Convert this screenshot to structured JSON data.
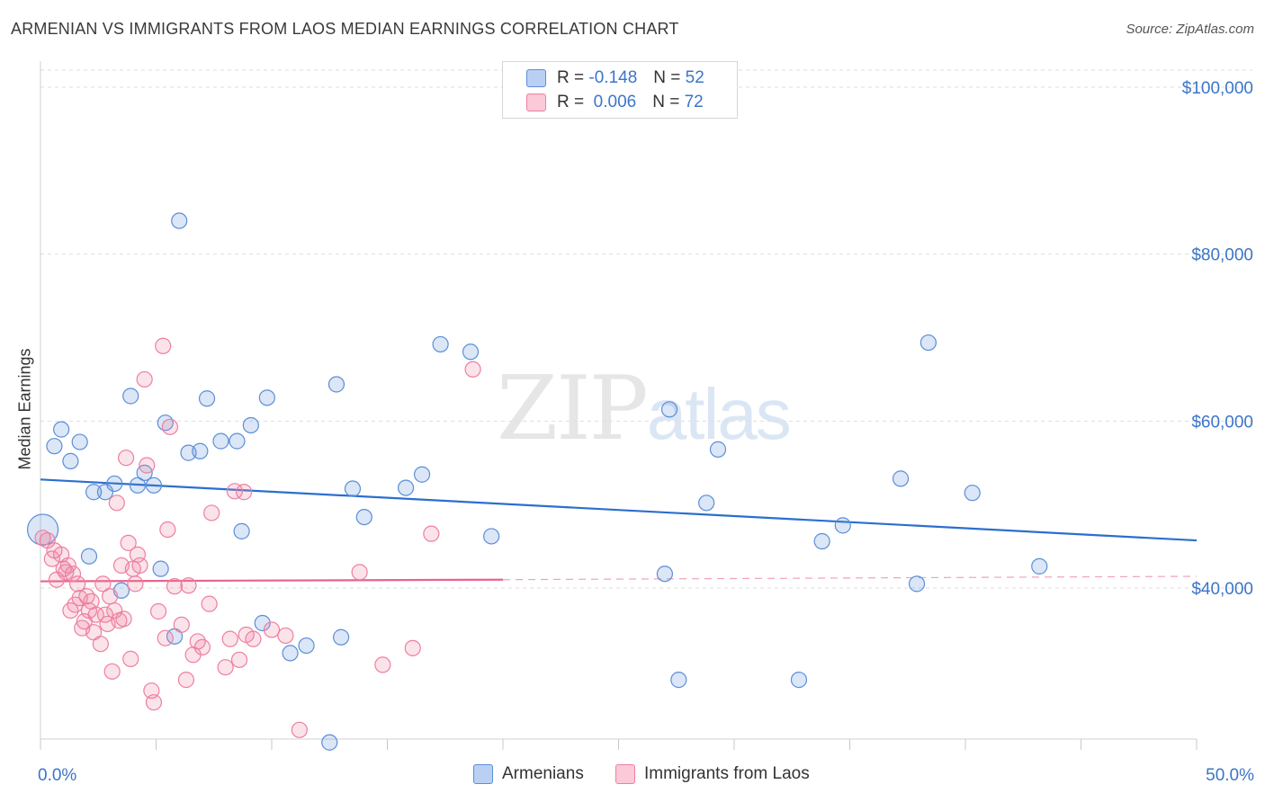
{
  "title": "ARMENIAN VS IMMIGRANTS FROM LAOS MEDIAN EARNINGS CORRELATION CHART",
  "source": "Source: ZipAtlas.com",
  "watermark": {
    "zip": "ZIP",
    "atlas": "atlas"
  },
  "legend_top": {
    "rows": [
      {
        "r_label": "R =",
        "r_value": "-0.148",
        "n_label": "N =",
        "n_value": "52"
      },
      {
        "r_label": "R =",
        "r_value": "0.006",
        "n_label": "N =",
        "n_value": "72"
      }
    ]
  },
  "x_start_label": "0.0%",
  "x_end_label": "50.0%",
  "chart_data": {
    "type": "scatter",
    "title": "ARMENIAN VS IMMIGRANTS FROM LAOS MEDIAN EARNINGS CORRELATION CHART",
    "xlabel": "",
    "ylabel": "Median Earnings",
    "xlim": [
      0,
      50
    ],
    "ylim": [
      19000,
      101000
    ],
    "y_ticks": [
      {
        "value": 40000,
        "label": "$40,000"
      },
      {
        "value": 60000,
        "label": "$60,000"
      },
      {
        "value": 80000,
        "label": "$80,000"
      },
      {
        "value": 100000,
        "label": "$100,000"
      }
    ],
    "colors": {
      "armenians": "#5b8ed8",
      "laos": "#ee7fa0",
      "blue_line": "#2a6fcf",
      "pink_line": "#e8638e"
    },
    "series": [
      {
        "name": "Armenians",
        "color": "#5b8ed8",
        "points": [
          [
            0.1,
            47000
          ],
          [
            0.6,
            57000
          ],
          [
            0.9,
            59000
          ],
          [
            1.3,
            55200
          ],
          [
            1.7,
            57500
          ],
          [
            2.1,
            43800
          ],
          [
            2.3,
            51500
          ],
          [
            2.8,
            51500
          ],
          [
            3.2,
            52500
          ],
          [
            3.5,
            39700
          ],
          [
            3.9,
            63000
          ],
          [
            4.2,
            52300
          ],
          [
            4.5,
            53800
          ],
          [
            4.9,
            52300
          ],
          [
            5.2,
            42300
          ],
          [
            5.4,
            59800
          ],
          [
            6.0,
            84000
          ],
          [
            6.4,
            56200
          ],
          [
            6.9,
            56400
          ],
          [
            7.2,
            62700
          ],
          [
            7.8,
            57600
          ],
          [
            8.5,
            57600
          ],
          [
            8.7,
            46800
          ],
          [
            9.1,
            59500
          ],
          [
            9.6,
            35800
          ],
          [
            9.8,
            62800
          ],
          [
            10.8,
            32200
          ],
          [
            11.5,
            33100
          ],
          [
            12.5,
            21500
          ],
          [
            12.8,
            64400
          ],
          [
            13.0,
            34100
          ],
          [
            13.5,
            51900
          ],
          [
            14.0,
            48500
          ],
          [
            15.8,
            52000
          ],
          [
            16.5,
            53600
          ],
          [
            17.3,
            69200
          ],
          [
            18.6,
            68300
          ],
          [
            19.5,
            46200
          ],
          [
            27.0,
            41700
          ],
          [
            27.2,
            61400
          ],
          [
            27.6,
            29000
          ],
          [
            28.8,
            50200
          ],
          [
            29.3,
            56600
          ],
          [
            32.8,
            29000
          ],
          [
            33.8,
            45600
          ],
          [
            34.7,
            47500
          ],
          [
            37.2,
            53100
          ],
          [
            37.9,
            40500
          ],
          [
            38.4,
            69400
          ],
          [
            40.3,
            51400
          ],
          [
            43.2,
            42600
          ],
          [
            5.8,
            34200
          ]
        ]
      },
      {
        "name": "Immigrants from Laos",
        "color": "#ee7fa0",
        "points": [
          [
            0.1,
            46000
          ],
          [
            0.3,
            45700
          ],
          [
            0.5,
            43500
          ],
          [
            0.6,
            44500
          ],
          [
            0.7,
            41000
          ],
          [
            0.9,
            44000
          ],
          [
            1.0,
            42300
          ],
          [
            1.1,
            41900
          ],
          [
            1.2,
            42700
          ],
          [
            1.3,
            37300
          ],
          [
            1.4,
            41700
          ],
          [
            1.5,
            38000
          ],
          [
            1.6,
            40500
          ],
          [
            1.7,
            38800
          ],
          [
            1.8,
            35200
          ],
          [
            1.9,
            36000
          ],
          [
            2.0,
            39000
          ],
          [
            2.1,
            37300
          ],
          [
            2.2,
            38400
          ],
          [
            2.3,
            34700
          ],
          [
            2.4,
            36800
          ],
          [
            2.6,
            33300
          ],
          [
            2.7,
            40500
          ],
          [
            2.8,
            36800
          ],
          [
            2.9,
            35700
          ],
          [
            3.0,
            39000
          ],
          [
            3.1,
            30000
          ],
          [
            3.2,
            37300
          ],
          [
            3.3,
            50200
          ],
          [
            3.4,
            36100
          ],
          [
            3.5,
            42700
          ],
          [
            3.6,
            36300
          ],
          [
            3.7,
            55600
          ],
          [
            3.8,
            45400
          ],
          [
            4.0,
            42300
          ],
          [
            4.1,
            40500
          ],
          [
            4.2,
            44000
          ],
          [
            4.3,
            42700
          ],
          [
            4.5,
            65000
          ],
          [
            4.6,
            54700
          ],
          [
            4.8,
            27700
          ],
          [
            4.9,
            26300
          ],
          [
            5.1,
            37200
          ],
          [
            5.3,
            69000
          ],
          [
            5.4,
            34000
          ],
          [
            5.5,
            47000
          ],
          [
            5.6,
            59300
          ],
          [
            5.8,
            40200
          ],
          [
            6.1,
            35600
          ],
          [
            6.3,
            29000
          ],
          [
            6.4,
            40300
          ],
          [
            6.8,
            33600
          ],
          [
            7.0,
            32900
          ],
          [
            7.3,
            38100
          ],
          [
            7.4,
            49000
          ],
          [
            8.2,
            33900
          ],
          [
            8.4,
            51600
          ],
          [
            8.6,
            31400
          ],
          [
            8.8,
            51500
          ],
          [
            8.9,
            34400
          ],
          [
            9.2,
            33900
          ],
          [
            10.0,
            35000
          ],
          [
            10.6,
            34300
          ],
          [
            11.2,
            23000
          ],
          [
            13.8,
            41900
          ],
          [
            14.8,
            30800
          ],
          [
            16.1,
            32800
          ],
          [
            16.9,
            46500
          ],
          [
            18.7,
            66200
          ],
          [
            6.6,
            32000
          ],
          [
            8.0,
            30500
          ],
          [
            3.9,
            31500
          ]
        ]
      }
    ],
    "trend_lines": [
      {
        "series": "Armenians",
        "from": [
          0,
          53000
        ],
        "to": [
          50,
          45700
        ],
        "style": "solid"
      },
      {
        "series": "Immigrants from Laos",
        "from": [
          0,
          40800
        ],
        "to": [
          20,
          41000
        ],
        "style": "solid"
      },
      {
        "series": "Immigrants from Laos",
        "from": [
          20,
          41000
        ],
        "to": [
          50,
          41400
        ],
        "style": "dashed"
      }
    ],
    "legend": [
      "Armenians",
      "Immigrants from Laos"
    ],
    "grid": true
  }
}
